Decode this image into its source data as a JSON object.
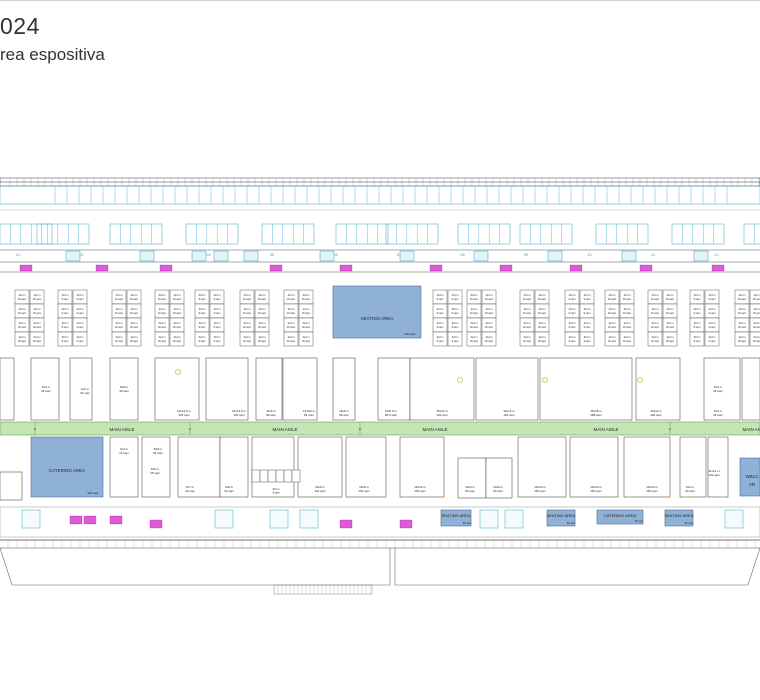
{
  "header": {
    "title": "024",
    "subtitle": "rea espositiva"
  },
  "bay_numbers": [
    "01",
    "02",
    "03",
    "04",
    "05",
    "06",
    "07",
    "08",
    "09",
    "10",
    "11",
    "12"
  ],
  "aisle_label": "MAIN AISLE",
  "top_booths": [
    {
      "size": "4x4 m",
      "area": "16 sqm"
    },
    {
      "size": "3x3 m",
      "area": "9 sqm"
    }
  ],
  "seating_area_top": {
    "label": "SEATING AREA",
    "area": "200 sqm"
  },
  "upper_row_labels": [
    {
      "size": "6x6 m",
      "area": "36 sqm"
    },
    {
      "size": "4x6 m",
      "area": "24 sqm"
    },
    {
      "size": "5x8 m",
      "area": "40 sqm"
    },
    {
      "size": "10x14.5 m",
      "area": "145 sqm"
    },
    {
      "size": "10x14.5 m",
      "area": "145 sqm"
    },
    {
      "size": "11x9 m",
      "area": "99 sqm"
    },
    {
      "size": "13.5x6 m",
      "area": "81 sqm"
    },
    {
      "size": "16x6 m",
      "area": "96 sqm"
    },
    {
      "size": "11x5.5 m",
      "area": "60.5 sqm"
    },
    {
      "size": "16x12 m",
      "area": "192 sqm"
    },
    {
      "size": "16x12 m",
      "area": "192 sqm"
    },
    {
      "size": "16x18 m",
      "area": "288 sqm"
    },
    {
      "size": "16x12 m",
      "area": "192 sqm"
    },
    {
      "size": "6x6 m",
      "area": "36 sqm"
    },
    {
      "size": "6x6 m",
      "area": "36 sqm"
    }
  ],
  "catering_area_left": {
    "label": "CATERING AREA",
    "area": "304 sqm"
  },
  "lower_row_labels": [
    {
      "size": "4x4 m",
      "area": "16 sqm"
    },
    {
      "size": "8x8 m",
      "area": "64 sqm"
    },
    {
      "size": "5x5 m",
      "area": "25 sqm"
    },
    {
      "size": "6x7 m",
      "area": "42 sqm"
    },
    {
      "size": "4x8 m",
      "area": "32 sqm"
    },
    {
      "size": "16x9 m",
      "area": "144 sqm"
    },
    {
      "size": "16x9 m",
      "area": "144 sqm"
    },
    {
      "size": "16x12 m",
      "area": "192 sqm"
    },
    {
      "size": "10x9 m",
      "area": "90 sqm"
    },
    {
      "size": "10x9 m",
      "area": "90 sqm"
    },
    {
      "size": "16x10 m",
      "area": "160 sqm"
    },
    {
      "size": "16x10 m",
      "area": "160 sqm"
    },
    {
      "size": "16x10 m",
      "area": "160 sqm"
    },
    {
      "size": "5x6 m",
      "area": "30 sqm"
    },
    {
      "size": "11x12 m",
      "area": "132 sqm"
    }
  ],
  "small_booth_cluster": {
    "size": "3x3 m",
    "area": "9 sqm"
  },
  "bottom_areas": [
    {
      "label": "SEATING AREA",
      "area": "65 sqm"
    },
    {
      "label": "SEATING AREA",
      "area": "60 sqm"
    },
    {
      "label": "CATERING AREA",
      "area": "48 sqm"
    },
    {
      "label": "SEATING AREA",
      "area": "36 sqm"
    }
  ],
  "welcome_area": {
    "label": "WELC",
    "label_2": "AR"
  },
  "colors": {
    "aisle": "#c4e6b3",
    "feature_area": "#8fb1d6",
    "feature_border": "#4a6e96",
    "grid_lines": "#3aa5c6",
    "magenta": "#e05ad6",
    "line": "#333333"
  }
}
